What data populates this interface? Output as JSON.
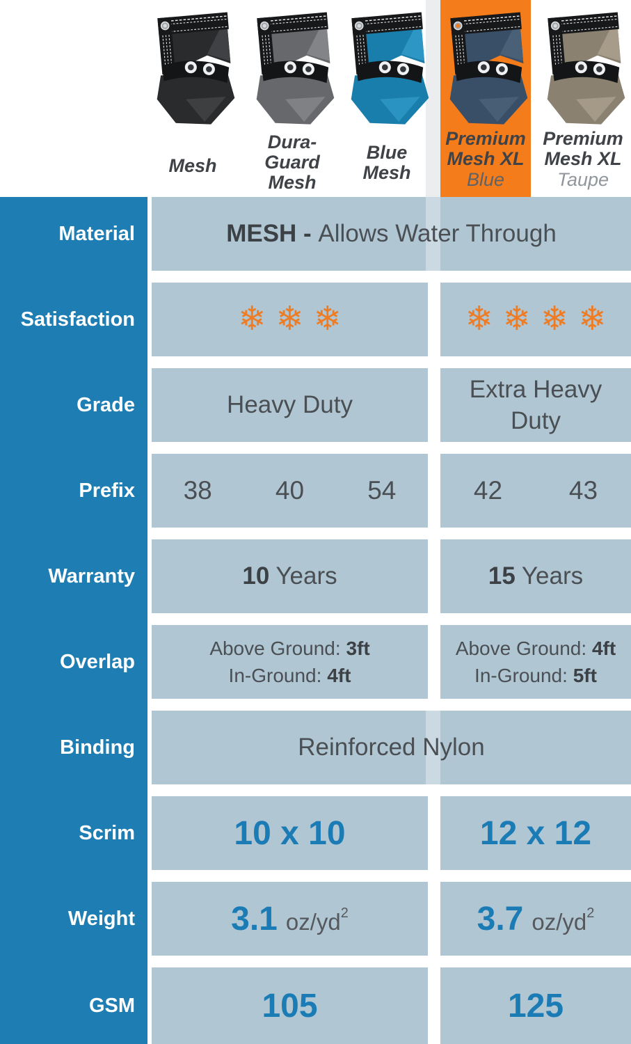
{
  "header": {
    "gap_strip_color": "#EBEDEF",
    "highlight_color": "#F57C1B",
    "name_color": "#3F4347",
    "products": [
      {
        "name_lines": [
          "Mesh"
        ],
        "sub": "",
        "sub_color": "",
        "colors": {
          "fabric": "#2A2B2D",
          "fold": "#404144",
          "hole": "#D8DADC"
        }
      },
      {
        "name_lines": [
          "Dura-",
          "Guard",
          "Mesh"
        ],
        "sub": "",
        "sub_color": "",
        "colors": {
          "fabric": "#67686B",
          "fold": "#838487",
          "hole": "#D8DADC"
        }
      },
      {
        "name_lines": [
          "Blue",
          "Mesh"
        ],
        "sub": "",
        "sub_color": "",
        "colors": {
          "fabric": "#1A7EAC",
          "fold": "#2E96C4",
          "hole": "#D8DADC"
        }
      },
      {
        "name_lines": [
          "Premium",
          "Mesh XL"
        ],
        "sub": "Blue",
        "sub_color": "#5E6368",
        "colors": {
          "fabric": "#394E67",
          "fold": "#4A6077",
          "hole": "#F57C1B"
        }
      },
      {
        "name_lines": [
          "Premium",
          "Mesh XL"
        ],
        "sub": "Taupe",
        "sub_color": "#90969B",
        "colors": {
          "fabric": "#8B8171",
          "fold": "#A79C89",
          "hole": "#D8DADC"
        }
      }
    ]
  },
  "table": {
    "label_col_color": "#1E7DB2",
    "cell_color": "#B1C6D3",
    "blue_text_color": "#1B7BB5",
    "flake_color": "#EE7C25",
    "flake_char": "❄",
    "rows": [
      {
        "label": "Material",
        "layout": "span",
        "cells": [
          {
            "style": "md",
            "parts": [
              {
                "t": "MESH - ",
                "b": 1
              },
              {
                "t": "Allows Water Through"
              }
            ]
          }
        ]
      },
      {
        "label": "Satisfaction",
        "layout": "split",
        "cells": [
          {
            "style": "flakes",
            "flakes": 3
          },
          {
            "style": "flakes",
            "flakes": 4
          }
        ]
      },
      {
        "label": "Grade",
        "layout": "split",
        "cells": [
          {
            "style": "md",
            "parts": [
              {
                "t": "Heavy Duty"
              }
            ]
          },
          {
            "style": "md narrow",
            "parts": [
              {
                "t": "Extra Heavy Duty"
              }
            ]
          }
        ]
      },
      {
        "label": "Prefix",
        "layout": "split",
        "cells": [
          {
            "style": "nums",
            "nums": [
              "38",
              "40",
              "54"
            ]
          },
          {
            "style": "nums",
            "nums": [
              "42",
              "43"
            ]
          }
        ]
      },
      {
        "label": "Warranty",
        "layout": "split",
        "cells": [
          {
            "style": "md",
            "parts": [
              {
                "t": "10",
                "b": 1
              },
              {
                "t": " Years"
              }
            ]
          },
          {
            "style": "md",
            "parts": [
              {
                "t": "15",
                "b": 1
              },
              {
                "t": " Years"
              }
            ]
          }
        ]
      },
      {
        "label": "Overlap",
        "layout": "split",
        "cells": [
          {
            "style": "sm",
            "lines": [
              [
                {
                  "t": "Above Ground: "
                },
                {
                  "t": "3ft",
                  "b": 1
                }
              ],
              [
                {
                  "t": "In-Ground: "
                },
                {
                  "t": "4ft",
                  "b": 1
                }
              ]
            ]
          },
          {
            "style": "sm",
            "lines": [
              [
                {
                  "t": "Above Ground: "
                },
                {
                  "t": "4ft",
                  "b": 1
                }
              ],
              [
                {
                  "t": "In-Ground: "
                },
                {
                  "t": "5ft",
                  "b": 1
                }
              ]
            ]
          }
        ]
      },
      {
        "label": "Binding",
        "layout": "span",
        "cells": [
          {
            "style": "md",
            "parts": [
              {
                "t": "Reinforced Nylon"
              }
            ]
          }
        ]
      },
      {
        "label": "Scrim",
        "layout": "split",
        "cells": [
          {
            "style": "big",
            "parts": [
              {
                "t": "10 x 10",
                "blue": 1
              }
            ]
          },
          {
            "style": "big",
            "parts": [
              {
                "t": "12 x 12",
                "blue": 1
              }
            ]
          }
        ]
      },
      {
        "label": "Weight",
        "layout": "split",
        "cells": [
          {
            "style": "big",
            "parts": [
              {
                "t": "3.1",
                "blue": 1
              },
              {
                "t": "oz/yd",
                "unit": 1
              },
              {
                "t": "2",
                "sup": 1
              }
            ]
          },
          {
            "style": "big",
            "parts": [
              {
                "t": "3.7",
                "blue": 1
              },
              {
                "t": "oz/yd",
                "unit": 1
              },
              {
                "t": "2",
                "sup": 1
              }
            ]
          }
        ]
      },
      {
        "label": "GSM",
        "layout": "split",
        "cells": [
          {
            "style": "big",
            "parts": [
              {
                "t": "105",
                "blue": 1
              }
            ]
          },
          {
            "style": "big",
            "parts": [
              {
                "t": "125",
                "blue": 1
              }
            ]
          }
        ]
      }
    ]
  },
  "chart_data": {
    "type": "table",
    "columns": [
      "Mesh",
      "Dura-Guard Mesh",
      "Blue Mesh",
      "Premium Mesh XL Blue",
      "Premium Mesh XL Taupe"
    ],
    "column_groups": {
      "standard": [
        "Mesh",
        "Dura-Guard Mesh",
        "Blue Mesh"
      ],
      "premium": [
        "Premium Mesh XL Blue",
        "Premium Mesh XL Taupe"
      ]
    },
    "highlighted_column": "Premium Mesh XL Blue",
    "rows": [
      {
        "label": "Material",
        "values": {
          "all": "MESH - Allows Water Through"
        }
      },
      {
        "label": "Satisfaction",
        "values": {
          "standard": "3 snowflakes",
          "premium": "4 snowflakes"
        }
      },
      {
        "label": "Grade",
        "values": {
          "standard": "Heavy Duty",
          "premium": "Extra Heavy Duty"
        }
      },
      {
        "label": "Prefix",
        "values": {
          "Mesh": "38",
          "Dura-Guard Mesh": "40",
          "Blue Mesh": "54",
          "Premium Mesh XL Blue": "42",
          "Premium Mesh XL Taupe": "43"
        }
      },
      {
        "label": "Warranty",
        "values": {
          "standard": "10 Years",
          "premium": "15 Years"
        }
      },
      {
        "label": "Overlap",
        "values": {
          "standard": "Above Ground: 3ft; In-Ground: 4ft",
          "premium": "Above Ground: 4ft; In-Ground: 5ft"
        }
      },
      {
        "label": "Binding",
        "values": {
          "all": "Reinforced Nylon"
        }
      },
      {
        "label": "Scrim",
        "values": {
          "standard": "10 x 10",
          "premium": "12 x 12"
        }
      },
      {
        "label": "Weight",
        "values": {
          "standard": "3.1 oz/yd2",
          "premium": "3.7 oz/yd2"
        }
      },
      {
        "label": "GSM",
        "values": {
          "standard": "105",
          "premium": "125"
        }
      }
    ]
  }
}
